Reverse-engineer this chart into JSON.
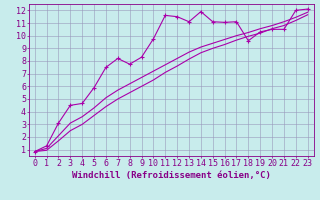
{
  "title": "",
  "xlabel": "Windchill (Refroidissement éolien,°C)",
  "bg_color": "#c8ecec",
  "line_color": "#aa00aa",
  "xlim": [
    -0.5,
    23.5
  ],
  "ylim": [
    0.5,
    12.5
  ],
  "xticks": [
    0,
    1,
    2,
    3,
    4,
    5,
    6,
    7,
    8,
    9,
    10,
    11,
    12,
    13,
    14,
    15,
    16,
    17,
    18,
    19,
    20,
    21,
    22,
    23
  ],
  "yticks": [
    1,
    2,
    3,
    4,
    5,
    6,
    7,
    8,
    9,
    10,
    11,
    12
  ],
  "data_x": [
    0,
    1,
    2,
    3,
    4,
    5,
    6,
    7,
    8,
    9,
    10,
    11,
    12,
    13,
    14,
    15,
    16,
    17,
    18,
    19,
    20,
    21,
    22,
    23
  ],
  "line1_y": [
    0.85,
    1.3,
    3.1,
    4.5,
    4.65,
    5.9,
    7.5,
    8.2,
    7.75,
    8.3,
    9.75,
    11.6,
    11.5,
    11.1,
    11.9,
    11.1,
    11.05,
    11.1,
    9.6,
    10.3,
    10.5,
    10.5,
    12.0,
    12.1
  ],
  "line2_y": [
    0.85,
    1.1,
    2.1,
    3.1,
    3.6,
    4.3,
    5.1,
    5.7,
    6.2,
    6.7,
    7.2,
    7.7,
    8.2,
    8.7,
    9.1,
    9.4,
    9.7,
    10.0,
    10.25,
    10.55,
    10.8,
    11.1,
    11.45,
    11.85
  ],
  "line3_y": [
    0.85,
    0.95,
    1.7,
    2.5,
    3.0,
    3.7,
    4.4,
    5.0,
    5.5,
    6.0,
    6.5,
    7.1,
    7.6,
    8.15,
    8.65,
    9.0,
    9.3,
    9.65,
    9.95,
    10.2,
    10.55,
    10.8,
    11.2,
    11.65
  ],
  "grid_color": "#9999bb",
  "font_color": "#880088",
  "font_size": 6,
  "xlabel_fontsize": 6.5
}
